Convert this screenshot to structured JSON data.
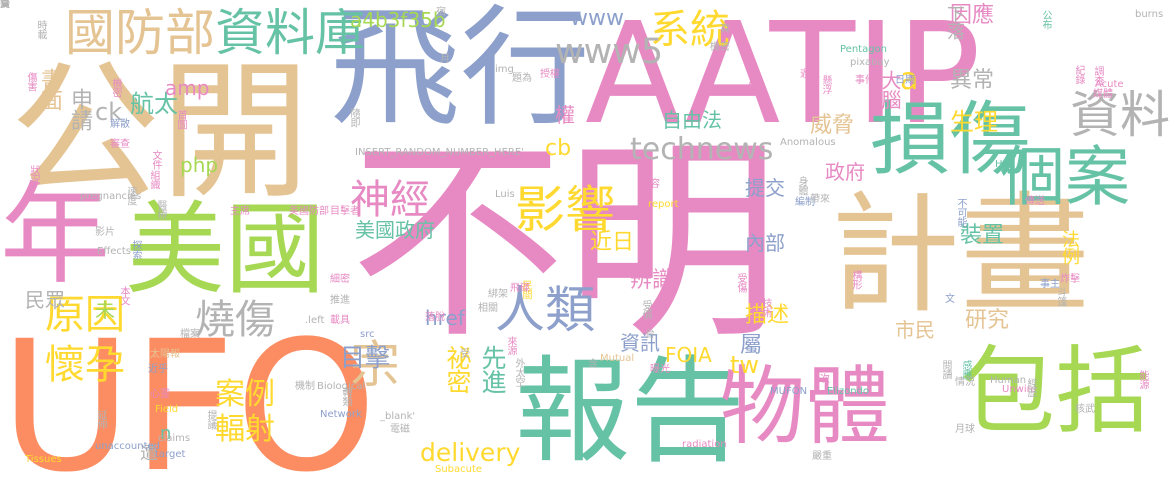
{
  "palette": {
    "pink": "#e78ac3",
    "green": "#66c2a5",
    "orange": "#fc8d62",
    "blue": "#8da0cb",
    "lime": "#a6d854",
    "tan": "#e5c494",
    "gray": "#b3b3b3",
    "yellow": "#ffd92f"
  },
  "words": [
    {
      "text": "不明",
      "color": "pink"
    },
    {
      "text": "UFO",
      "color": "orange"
    },
    {
      "text": "公開",
      "color": "tan"
    },
    {
      "text": "飛行",
      "color": "blue"
    },
    {
      "text": "AATIP",
      "color": "pink"
    },
    {
      "text": "計畫",
      "color": "tan"
    },
    {
      "text": "報告",
      "color": "green"
    },
    {
      "text": "損傷",
      "color": "green"
    },
    {
      "text": "美國",
      "color": "lime"
    },
    {
      "text": "年",
      "color": "pink"
    },
    {
      "text": "物體",
      "color": "pink"
    },
    {
      "text": "包括",
      "color": "lime"
    },
    {
      "text": "個案",
      "color": "green"
    },
    {
      "text": "資料",
      "color": "gray"
    },
    {
      "text": "人類",
      "color": "blue"
    },
    {
      "text": "國防部",
      "color": "tan"
    },
    {
      "text": "資料庫",
      "color": "green"
    },
    {
      "text": "影響",
      "color": "yellow"
    },
    {
      "text": "神經",
      "color": "pink"
    },
    {
      "text": "燒傷",
      "color": "gray"
    },
    {
      "text": "原因",
      "color": "yellow"
    },
    {
      "text": "懷孕",
      "color": "yellow"
    },
    {
      "text": "系統",
      "color": "yellow"
    },
    {
      "text": "www5",
      "color": "gray"
    },
    {
      "text": "www",
      "color": "blue"
    },
    {
      "text": "technews",
      "color": "gray"
    },
    {
      "text": "a4b3f35b",
      "color": "lime"
    },
    {
      "text": "a",
      "color": "yellow"
    },
    {
      "text": "宗",
      "color": "tan"
    },
    {
      "text": "案例",
      "color": "yellow"
    },
    {
      "text": "輻射",
      "color": "yellow"
    },
    {
      "text": "目擊",
      "color": "blue"
    },
    {
      "text": "祕密",
      "color": "yellow"
    },
    {
      "text": "先進",
      "color": "green"
    },
    {
      "text": "delivery",
      "color": "yellow"
    },
    {
      "text": "href",
      "color": "blue"
    },
    {
      "text": "美國政府",
      "color": "green"
    },
    {
      "text": "航太",
      "color": "green"
    },
    {
      "text": "amp",
      "color": "pink"
    },
    {
      "text": "申請",
      "color": "gray"
    },
    {
      "text": "書面",
      "color": "tan"
    },
    {
      "text": "ck",
      "color": "gray"
    },
    {
      "text": "php",
      "color": "lime"
    },
    {
      "text": "權",
      "color": "pink"
    },
    {
      "text": "cb",
      "color": "yellow"
    },
    {
      "text": "自由法",
      "color": "green"
    },
    {
      "text": "FOIA",
      "color": "yellow"
    },
    {
      "text": "大腦",
      "color": "pink"
    },
    {
      "text": "因應",
      "color": "pink"
    },
    {
      "text": "異常",
      "color": "gray"
    },
    {
      "text": "生理",
      "color": "yellow"
    },
    {
      "text": "下落",
      "color": "gray"
    },
    {
      "text": "威脅",
      "color": "tan"
    },
    {
      "text": "政府",
      "color": "pink"
    },
    {
      "text": "提交",
      "color": "blue"
    },
    {
      "text": "內部",
      "color": "blue"
    },
    {
      "text": "近日",
      "color": "yellow"
    },
    {
      "text": "辨識",
      "color": "pink"
    },
    {
      "text": "描述",
      "color": "yellow"
    },
    {
      "text": "資訊",
      "color": "blue"
    },
    {
      "text": "屬",
      "color": "blue"
    },
    {
      "text": "tw",
      "color": "yellow"
    },
    {
      "text": "研究",
      "color": "tan"
    },
    {
      "text": "市民",
      "color": "tan"
    },
    {
      "text": "裝置",
      "color": "green"
    },
    {
      "text": "法例",
      "color": "yellow"
    },
    {
      "text": "民眾",
      "color": "gray"
    },
    {
      "text": "未",
      "color": "lime"
    },
    {
      "text": "n",
      "color": "green"
    },
    {
      "text": "遭",
      "color": "gray"
    },
    {
      "text": "INSERT_RANDOM_NUMBER_HERE'",
      "color": "gray"
    },
    {
      "text": "Pentagon",
      "color": "green"
    },
    {
      "text": "pixabay",
      "color": "gray"
    },
    {
      "text": "Anomalous",
      "color": "gray"
    },
    {
      "text": "Biological",
      "color": "gray"
    },
    {
      "text": "Network",
      "color": "blue"
    },
    {
      "text": "_blank'",
      "color": "gray"
    },
    {
      "text": "radiation",
      "color": "pink"
    },
    {
      "text": "MUFON",
      "color": "blue"
    },
    {
      "text": "Elizondo",
      "color": "green"
    },
    {
      "text": "Human",
      "color": "gray"
    },
    {
      "text": "Unwire",
      "color": "pink"
    },
    {
      "text": "Acute",
      "color": "pink"
    },
    {
      "text": "burns",
      "color": "gray"
    },
    {
      "text": "Effects",
      "color": "gray"
    },
    {
      "text": "pregnancies",
      "color": "gray"
    },
    {
      "text": "Tissues",
      "color": "yellow"
    },
    {
      "text": "unaccounted",
      "color": "blue"
    },
    {
      "text": "claims",
      "color": "gray"
    },
    {
      "text": "Field",
      "color": "yellow"
    },
    {
      "text": "target",
      "color": "blue"
    },
    {
      "text": "Subacute",
      "color": "yellow"
    },
    {
      "text": "Mutual",
      "color": "tan"
    },
    {
      "text": "report",
      "color": "yellow"
    },
    {
      "text": "img",
      "color": "gray"
    },
    {
      "text": "Luis",
      "color": "gray"
    },
    {
      "text": "src",
      "color": "blue"
    },
    {
      "text": ".left",
      "color": "gray"
    },
    {
      "text": "HK",
      "color": "green"
    },
    {
      "text": "時載",
      "color": "gray"
    },
    {
      "text": "傷害",
      "color": "pink"
    },
    {
      "text": "狀況",
      "color": "pink"
    },
    {
      "text": "機密",
      "color": "pink"
    },
    {
      "text": "解散",
      "color": "blue"
    },
    {
      "text": "審查",
      "color": "pink"
    },
    {
      "text": "首圖",
      "color": "pink"
    },
    {
      "text": "文件",
      "color": "pink"
    },
    {
      "text": "組織",
      "color": "pink"
    },
    {
      "text": "速度",
      "color": "gray"
    },
    {
      "text": "醫療",
      "color": "gray"
    },
    {
      "text": "影片",
      "color": "gray"
    },
    {
      "text": "探索",
      "color": "blue"
    },
    {
      "text": "主席",
      "color": "pink"
    },
    {
      "text": "美國防部",
      "color": "pink"
    },
    {
      "text": "目擊者",
      "color": "pink"
    },
    {
      "text": "細密",
      "color": "pink"
    },
    {
      "text": "推進",
      "color": "gray"
    },
    {
      "text": "載具",
      "color": "pink"
    },
    {
      "text": "檔案",
      "color": "gray"
    },
    {
      "text": "近乎",
      "color": "blue"
    },
    {
      "text": "太陽報",
      "color": "tan"
    },
    {
      "text": "本文",
      "color": "pink"
    },
    {
      "text": "落脫",
      "color": "pink"
    },
    {
      "text": "相關",
      "color": "gray"
    },
    {
      "text": "隨即",
      "color": "gray"
    },
    {
      "text": "延伸",
      "color": "gray"
    },
    {
      "text": "心靈",
      "color": "pink"
    },
    {
      "text": "提議",
      "color": "gray"
    },
    {
      "text": "轉類",
      "color": "gray"
    },
    {
      "text": "機制",
      "color": "gray"
    },
    {
      "text": "來源",
      "color": "pink"
    },
    {
      "text": "外太空",
      "color": "gray"
    },
    {
      "text": "曝光",
      "color": "pink"
    },
    {
      "text": "受傷",
      "color": "pink"
    },
    {
      "text": "技術",
      "color": "pink"
    },
    {
      "text": "構形",
      "color": "pink"
    },
    {
      "text": "懸浮",
      "color": "pink"
    },
    {
      "text": "事件",
      "color": "pink"
    },
    {
      "text": "日期",
      "color": "blue"
    },
    {
      "text": "心悸",
      "color": "pink"
    },
    {
      "text": "遇上",
      "color": "pink"
    },
    {
      "text": "題為",
      "color": "gray"
    },
    {
      "text": "授權",
      "color": "pink"
    },
    {
      "text": "紀錄",
      "color": "pink"
    },
    {
      "text": "調查",
      "color": "pink"
    },
    {
      "text": "媒體",
      "color": "pink"
    },
    {
      "text": "公布",
      "color": "green"
    },
    {
      "text": "身體",
      "color": "gray"
    },
    {
      "text": "編制",
      "color": "blue"
    },
    {
      "text": "不可能",
      "color": "blue"
    },
    {
      "text": "傳送",
      "color": "pink"
    },
    {
      "text": "能源",
      "color": "pink"
    },
    {
      "text": "炸擊",
      "color": "pink"
    },
    {
      "text": "事主",
      "color": "blue"
    },
    {
      "text": "斗篷",
      "color": "gray"
    },
    {
      "text": "閱讀",
      "color": "gray"
    },
    {
      "text": "感應",
      "color": "green"
    },
    {
      "text": "情況",
      "color": "gray"
    },
    {
      "text": "經歷",
      "color": "gray"
    },
    {
      "text": "核武",
      "color": "gray"
    },
    {
      "text": "月球",
      "color": "gray"
    },
    {
      "text": "次",
      "color": "pink"
    },
    {
      "text": "內容",
      "color": "pink"
    },
    {
      "text": "受",
      "color": "gray"
    },
    {
      "text": "宿",
      "color": "gray"
    },
    {
      "text": "民間",
      "color": "yellow"
    },
    {
      "text": "飛碟",
      "color": "pink"
    },
    {
      "text": "綁架",
      "color": "gray"
    },
    {
      "text": "電磁",
      "color": "gray"
    },
    {
      "text": "含",
      "color": "gray"
    },
    {
      "text": "文",
      "color": "blue"
    },
    {
      "text": "受價",
      "color": "gray"
    },
    {
      "text": "帶來",
      "color": "gray"
    },
    {
      "text": "嚴重",
      "color": "gray"
    },
    {
      "text": "機密",
      "color": "gray"
    },
    {
      "text": "台",
      "color": "gray"
    },
    {
      "text": "月",
      "color": "gray"
    },
    {
      "text": "真",
      "color": "gray"
    },
    {
      "text": "變",
      "color": "gray"
    },
    {
      "text": "篇",
      "color": "gray"
    },
    {
      "text": "頁",
      "color": "gray"
    }
  ]
}
